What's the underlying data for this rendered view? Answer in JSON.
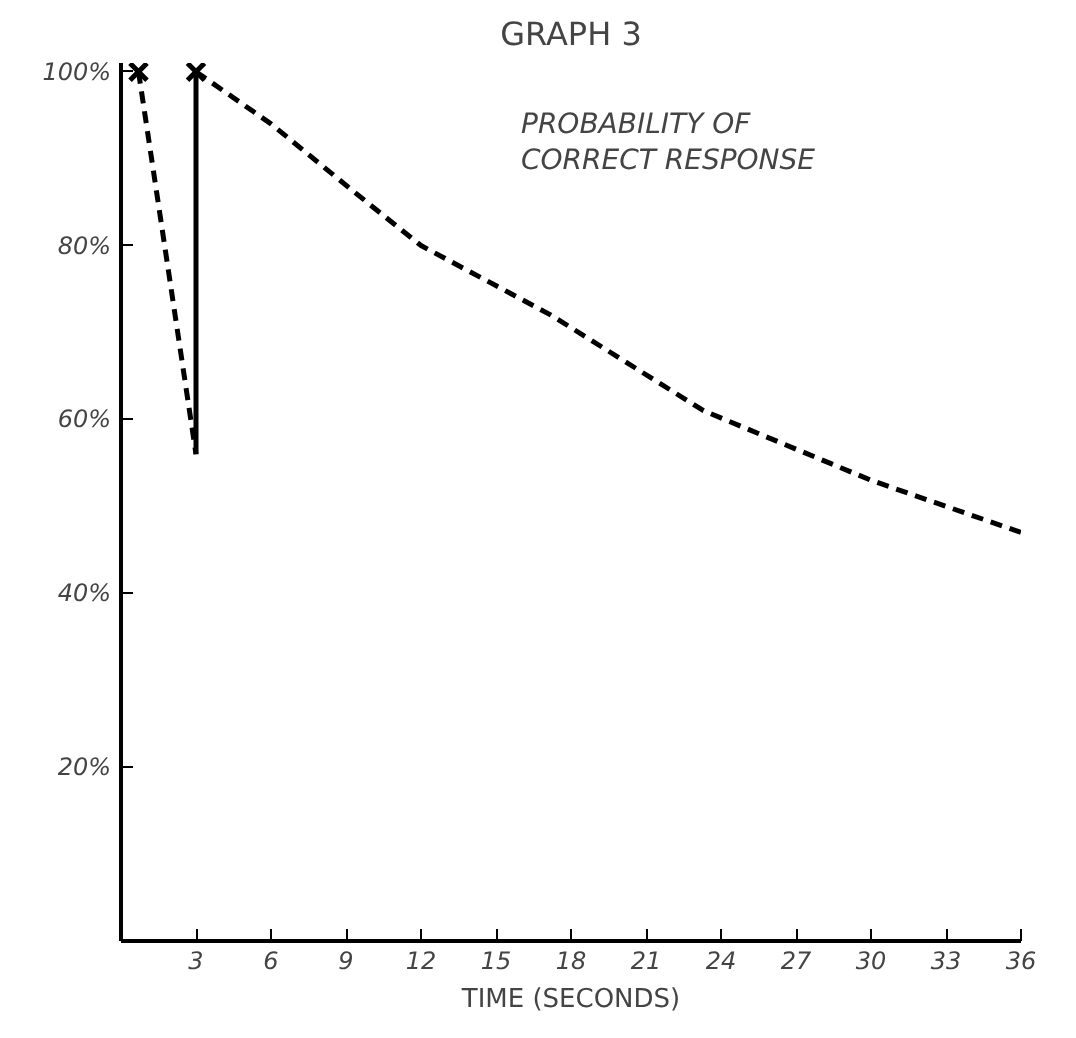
{
  "chart_data": {
    "type": "line",
    "title": "GRAPH 3",
    "xlabel": "TIME (SECONDS)",
    "xlim": [
      0,
      36
    ],
    "xticks": [
      3,
      6,
      9,
      12,
      15,
      18,
      21,
      24,
      27,
      30,
      33,
      36
    ],
    "ylim": [
      0,
      101
    ],
    "yticks": [
      {
        "value": 20,
        "label": "20%"
      },
      {
        "value": 40,
        "label": "40%"
      },
      {
        "value": 60,
        "label": "60%"
      },
      {
        "value": 80,
        "label": "80%"
      },
      {
        "value": 100,
        "label": "100%"
      }
    ],
    "grid": false,
    "marker": "none",
    "annotations": [
      "PROBABILITY OF\nCORRECT RESPONSE"
    ],
    "series": [
      {
        "color": "#000000",
        "line_style": "dashed",
        "x": [
          0.7,
          3
        ],
        "values": [
          100,
          56
        ]
      },
      {
        "color": "#000000",
        "line_style": "solid",
        "x": [
          3,
          3
        ],
        "values": [
          56,
          100
        ]
      },
      {
        "color": "#000000",
        "line_style": "dashed",
        "x": [
          3,
          6,
          9.4,
          12,
          17.2,
          23.3,
          30,
          36
        ],
        "values": [
          100,
          94,
          86,
          80,
          72,
          61,
          53,
          47
        ]
      },
      {
        "type": "scatter",
        "marker": "cross",
        "color": "#000000",
        "x": [
          0.7,
          3
        ],
        "values": [
          100,
          100
        ]
      }
    ]
  }
}
